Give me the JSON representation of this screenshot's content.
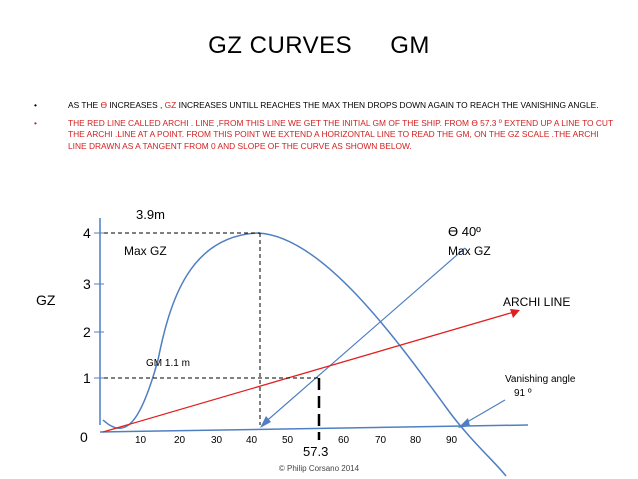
{
  "title": {
    "left": "GZ  CURVES",
    "right": "GM"
  },
  "bullets": [
    {
      "marker": "•",
      "parts": [
        {
          "text": "AS  THE ",
          "color": "dark"
        },
        {
          "text": "  Ɵ  ",
          "color": "red"
        },
        {
          "text": "  INCREASES ,  ",
          "color": "dark"
        },
        {
          "text": "GZ",
          "color": "red"
        },
        {
          "text": " INCREASES  UNTILL  REACHES THE MAX THEN DROPS DOWN AGAIN TO REACH THE VANISHING ANGLE.",
          "color": "dark"
        }
      ]
    },
    {
      "marker": "•",
      "parts": [
        {
          "text": "THE RED LINE",
          "color": "red"
        },
        {
          "text": " CALLED  ARCHI . LINE ,FROM THIS LINE WE GET THE INITIAL GM  OF THE SHIP.  FROM Ɵ  57.3 º EXTEND UP A LINE  TO CUT THE ARCHI .LINE AT A POINT.  FROM THIS POINT  WE EXTEND A HORIZONTAL  LINE  TO  READ THE  GM, ON THE  GZ SCALE .",
          "color": "dark"
        },
        {
          "text": "THE ARCHI LINE DRAWN  AS A TANGENT FROM 0  AND SLOPE OF THE CURVE  AS SHOWN BELOW.",
          "color": "red"
        }
      ]
    }
  ],
  "diagram": {
    "y_axis_label": "GZ",
    "y_ticks": [
      "4",
      "3",
      "2",
      "1",
      "0"
    ],
    "x_ticks": [
      "10",
      "20",
      "30",
      "40",
      "50",
      "60",
      "70",
      "80",
      "90"
    ],
    "max_gz_value": "3.9m",
    "max_gz_label": "Max  GZ",
    "theta_label": "Ɵ  40º",
    "theta_sub": "Max  GZ",
    "archi_line_label": "ARCHI  LINE",
    "gm_label": "GM 1.1  m",
    "vanishing_label_1": "Vanishing  angle",
    "vanishing_label_2": "91  º",
    "theta_573": "57.3",
    "colors": {
      "archi": "#e02020",
      "curve": "#4f7fc2",
      "axis": "#4f7fc2",
      "dashed": "#000000"
    }
  },
  "copyright": "© Philip Corsano 2014"
}
